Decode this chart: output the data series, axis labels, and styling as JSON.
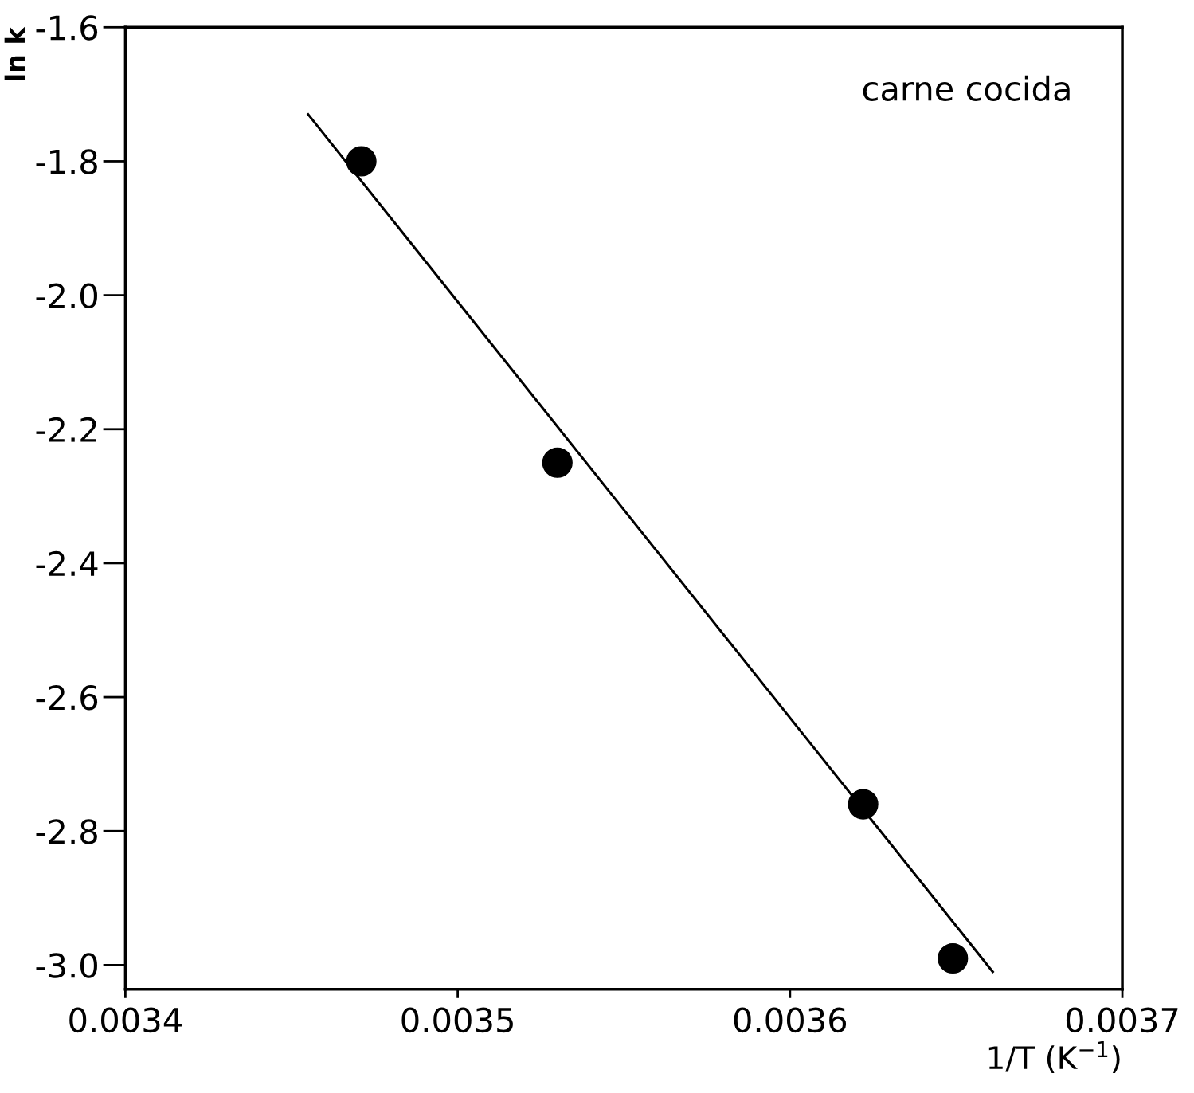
{
  "chart_data": {
    "type": "scatter",
    "xlabel": "1/T (K$^{−1}$)",
    "ylabel": "ln k",
    "annotations": [
      "carne cocida"
    ],
    "series": [
      {
        "type": "scatter",
        "color": "#000000",
        "marker": "circle",
        "x": [
          0.003471,
          0.00353,
          0.003622,
          0.003649
        ],
        "values": [
          -1.8,
          -2.25,
          -2.76,
          -2.99
        ]
      },
      {
        "type": "line",
        "color": "#000000",
        "line_style": "solid",
        "x": [
          0.003455,
          0.003661
        ],
        "values": [
          -1.73,
          -3.01
        ]
      }
    ],
    "xlim": [
      0.0034,
      0.0037
    ],
    "ylim": [
      -3.036,
      -1.6
    ],
    "xticks": [
      0.0034,
      0.0035,
      0.0036,
      0.0037
    ],
    "yticks": [
      -1.6,
      -1.8,
      {
        "value": -2,
        "label": "-2.0"
      },
      -2.2,
      -2.4,
      -2.6,
      -2.8,
      {
        "value": -3,
        "label": "-3.0"
      }
    ],
    "grid": false,
    "legend": false
  }
}
